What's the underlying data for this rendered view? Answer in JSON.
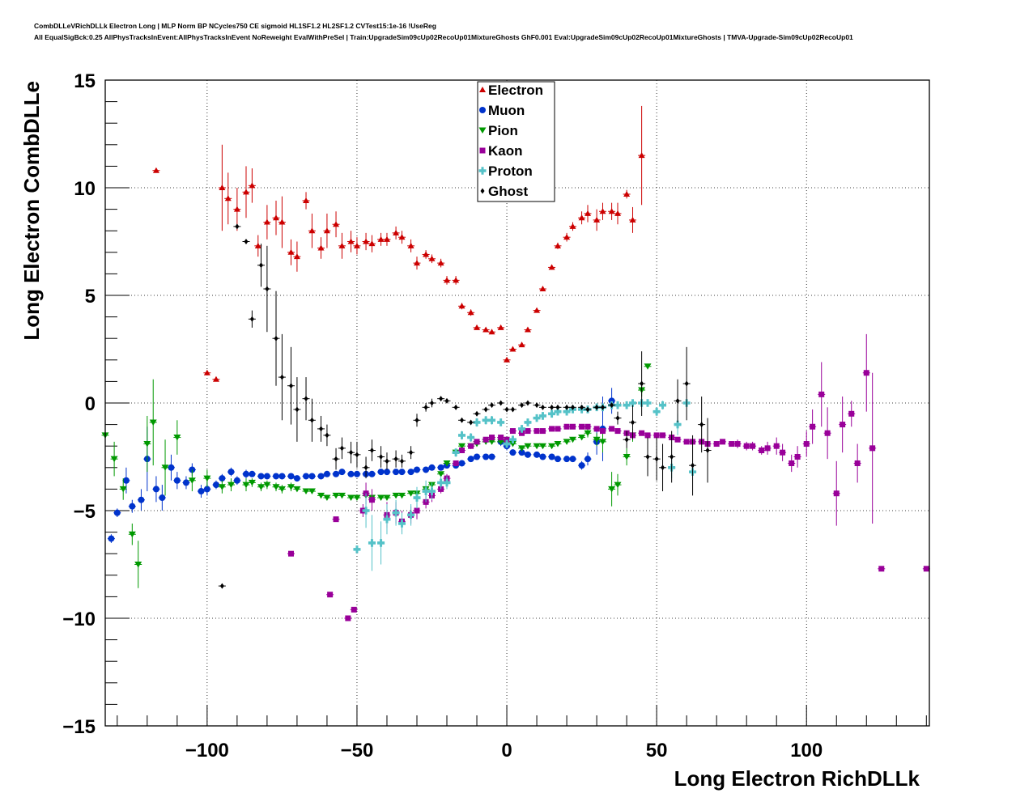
{
  "header": {
    "line1": "CombDLLeVRichDLLk Electron Long | MLP Norm BP NCycles750 CE sigmoid HL1SF1.2 HL2SF1.2 CVTest15:1e-16 !UseReg",
    "line2": "All EqualSigBck:0.25 AllPhysTracksInEvent:AllPhysTracksInEvent NoReweight EvalWithPreSel | Train:UpgradeSim09cUp02RecoUp01MixtureGhosts GhF0.001 Eval:UpgradeSim09cUp02RecoUp01MixtureGhosts | TMVA-Upgrade-Sim09cUp02RecoUp01"
  },
  "chart_data": {
    "type": "scatter",
    "xlabel": "Long Electron RichDLLk",
    "ylabel": "Long Electron CombDLLe",
    "xlim": [
      -134,
      141
    ],
    "ylim": [
      -15,
      15
    ],
    "xticks": [
      -100,
      -50,
      0,
      50,
      100
    ],
    "yticks": [
      -15,
      -10,
      -5,
      0,
      5,
      10,
      15
    ],
    "xtick_labels": [
      "−100",
      "−50",
      "0",
      "50",
      "100"
    ],
    "ytick_labels": [
      "−15",
      "−10",
      "−5",
      "0",
      "5",
      "10",
      "15"
    ],
    "grid": true,
    "legend_position": "top-center",
    "series": [
      {
        "name": "Electron",
        "color": "#cc0000",
        "marker": "triangle-up",
        "x": [
          -117,
          -100,
          -97,
          -95,
          -93,
          -90,
          -87,
          -85,
          -83,
          -80,
          -77,
          -75,
          -72,
          -70,
          -67,
          -65,
          -62,
          -60,
          -57,
          -55,
          -52,
          -50,
          -47,
          -45,
          -42,
          -40,
          -37,
          -35,
          -32,
          -30,
          -27,
          -25,
          -22,
          -20,
          -17,
          -15,
          -12,
          -10,
          -7,
          -5,
          -2,
          0,
          2,
          5,
          7,
          10,
          12,
          15,
          17,
          20,
          22,
          25,
          27,
          30,
          32,
          35,
          37,
          40,
          42,
          45
        ],
        "y": [
          10.8,
          1.4,
          1.1,
          10.0,
          9.5,
          9.0,
          9.8,
          10.1,
          7.3,
          8.4,
          8.6,
          8.4,
          7.0,
          6.8,
          9.4,
          8.0,
          7.2,
          8.0,
          8.3,
          7.3,
          7.5,
          7.3,
          7.5,
          7.4,
          7.6,
          7.6,
          7.9,
          7.7,
          7.3,
          6.5,
          6.9,
          6.7,
          6.5,
          5.7,
          5.7,
          4.5,
          4.2,
          3.5,
          3.4,
          3.3,
          3.5,
          2.0,
          2.5,
          2.7,
          3.4,
          4.3,
          5.3,
          6.3,
          7.3,
          7.7,
          8.2,
          8.6,
          8.8,
          8.5,
          8.9,
          8.9,
          8.8,
          9.7,
          8.5,
          11.5
        ],
        "err": [
          0,
          0,
          0,
          2.0,
          1.2,
          1.0,
          1.2,
          0.8,
          0.5,
          0.8,
          0.8,
          1.2,
          0.6,
          0.7,
          0.4,
          0.8,
          0.5,
          0.8,
          0.6,
          0.6,
          0.5,
          0.4,
          0.4,
          0.4,
          0.3,
          0.3,
          0.3,
          0.3,
          0.3,
          0.3,
          0.2,
          0.2,
          0.2,
          0.2,
          0.2,
          0.15,
          0.15,
          0.1,
          0.1,
          0.1,
          0.1,
          0.1,
          0.1,
          0.1,
          0.1,
          0.1,
          0.1,
          0.1,
          0.15,
          0.2,
          0.2,
          0.3,
          0.4,
          0.5,
          0.4,
          0.4,
          0.5,
          0.2,
          0.6,
          2.3
        ]
      },
      {
        "name": "Muon",
        "color": "#0033cc",
        "marker": "circle",
        "x": [
          -132,
          -130,
          -127,
          -125,
          -122,
          -120,
          -117,
          -115,
          -112,
          -110,
          -107,
          -105,
          -102,
          -100,
          -97,
          -95,
          -92,
          -90,
          -87,
          -85,
          -82,
          -80,
          -77,
          -75,
          -72,
          -70,
          -67,
          -65,
          -62,
          -60,
          -57,
          -55,
          -52,
          -50,
          -47,
          -45,
          -42,
          -40,
          -37,
          -35,
          -32,
          -30,
          -27,
          -25,
          -22,
          -20,
          -17,
          -15,
          -12,
          -10,
          -7,
          -5,
          -2,
          0,
          2,
          5,
          7,
          10,
          12,
          15,
          17,
          20,
          22,
          25,
          27,
          30,
          32,
          35
        ],
        "y": [
          -6.3,
          -5.1,
          -3.6,
          -4.8,
          -4.5,
          -2.6,
          -4.0,
          -4.4,
          -3.0,
          -3.6,
          -3.7,
          -3.1,
          -4.1,
          -4.0,
          -3.8,
          -3.5,
          -3.2,
          -3.6,
          -3.3,
          -3.3,
          -3.4,
          -3.4,
          -3.4,
          -3.4,
          -3.4,
          -3.5,
          -3.4,
          -3.4,
          -3.4,
          -3.3,
          -3.3,
          -3.2,
          -3.3,
          -3.3,
          -3.3,
          -3.3,
          -3.2,
          -3.2,
          -3.2,
          -3.2,
          -3.2,
          -3.1,
          -3.1,
          -3.0,
          -3.0,
          -2.9,
          -2.9,
          -2.8,
          -2.6,
          -2.5,
          -2.5,
          -2.5,
          -1.8,
          -2.0,
          -2.3,
          -2.3,
          -2.4,
          -2.4,
          -2.5,
          -2.5,
          -2.6,
          -2.6,
          -2.6,
          -2.9,
          -2.6,
          -1.8,
          -1.2,
          0.1
        ],
        "err": [
          0.2,
          0.2,
          0.6,
          0.3,
          0.5,
          1.5,
          0.6,
          0.6,
          0.6,
          0.4,
          0.3,
          0.3,
          0.3,
          0.3,
          0.2,
          0.2,
          0.2,
          0.2,
          0.2,
          0.1,
          0.1,
          0.1,
          0.1,
          0.1,
          0.1,
          0.1,
          0.1,
          0.1,
          0.1,
          0.1,
          0.1,
          0.1,
          0.1,
          0.1,
          0.1,
          0.1,
          0.1,
          0.1,
          0.1,
          0.1,
          0.1,
          0.1,
          0.1,
          0.1,
          0.1,
          0.1,
          0.1,
          0.1,
          0.1,
          0.1,
          0.1,
          0.1,
          0.2,
          0.2,
          0.1,
          0.1,
          0.1,
          0.1,
          0.1,
          0.1,
          0.1,
          0.1,
          0.1,
          0.2,
          0.3,
          0.6,
          1.5,
          0.6
        ]
      },
      {
        "name": "Pion",
        "color": "#009900",
        "marker": "triangle-down",
        "x": [
          -134,
          -131,
          -128,
          -125,
          -123,
          -120,
          -118,
          -114,
          -110,
          -105,
          -100,
          -95,
          -92,
          -87,
          -85,
          -82,
          -80,
          -77,
          -75,
          -72,
          -70,
          -67,
          -65,
          -62,
          -60,
          -57,
          -55,
          -52,
          -50,
          -47,
          -45,
          -42,
          -40,
          -37,
          -35,
          -32,
          -30,
          -27,
          -25,
          -22,
          -20,
          -17,
          -15,
          -12,
          -10,
          -7,
          -5,
          -2,
          0,
          2,
          5,
          7,
          10,
          12,
          15,
          17,
          20,
          22,
          25,
          27,
          30,
          32,
          35,
          37,
          40,
          42,
          45,
          47
        ],
        "y": [
          -1.5,
          -2.6,
          -4.0,
          -6.1,
          -7.5,
          -1.9,
          -0.9,
          -3.0,
          -1.6,
          -3.6,
          -3.5,
          -3.9,
          -3.8,
          -3.8,
          -3.7,
          -3.9,
          -3.8,
          -3.9,
          -4.0,
          -3.9,
          -4.0,
          -4.1,
          -4.1,
          -4.3,
          -4.4,
          -4.3,
          -4.3,
          -4.4,
          -4.4,
          -4.3,
          -4.4,
          -4.4,
          -4.4,
          -4.3,
          -4.3,
          -4.2,
          -4.2,
          -4.0,
          -3.8,
          -3.3,
          -2.8,
          -2.3,
          -2.0,
          -2.0,
          -1.9,
          -1.8,
          -1.8,
          -1.8,
          -1.9,
          -1.9,
          -2.1,
          -2.0,
          -2.0,
          -2.0,
          -2.0,
          -1.9,
          -1.8,
          -1.7,
          -1.6,
          -1.4,
          -1.7,
          -1.8,
          -4.0,
          -3.8,
          -2.5,
          -1.5,
          0.6,
          1.7
        ],
        "err": [
          0.3,
          0.8,
          0.5,
          0.5,
          1.1,
          1.3,
          2.0,
          1.3,
          0.8,
          0.5,
          0.4,
          0.3,
          0.3,
          0.3,
          0.2,
          0.2,
          0.2,
          0.2,
          0.2,
          0.2,
          0.1,
          0.1,
          0.1,
          0.1,
          0.1,
          0.1,
          0.1,
          0.1,
          0.1,
          0.1,
          0.1,
          0.1,
          0.1,
          0.1,
          0.1,
          0.1,
          0.1,
          0.1,
          0.1,
          0.1,
          0.1,
          0.1,
          0.1,
          0.1,
          0.1,
          0.1,
          0.1,
          0.1,
          0.1,
          0.1,
          0.1,
          0.1,
          0.1,
          0.1,
          0.1,
          0.1,
          0.1,
          0.1,
          0.1,
          0.2,
          0.3,
          0.5,
          0.8,
          0.5,
          0.4,
          0.3,
          0.3,
          0.1
        ]
      },
      {
        "name": "Kaon",
        "color": "#990099",
        "marker": "square",
        "x": [
          -72,
          -59,
          -57,
          -53,
          -51,
          -48,
          -47,
          -45,
          -40,
          -37,
          -35,
          -32,
          -30,
          -27,
          -25,
          -22,
          -20,
          -17,
          -15,
          -12,
          -10,
          -7,
          -5,
          -2,
          0,
          2,
          5,
          7,
          10,
          12,
          15,
          17,
          20,
          22,
          25,
          27,
          30,
          32,
          35,
          37,
          40,
          42,
          45,
          47,
          50,
          52,
          55,
          57,
          60,
          62,
          65,
          67,
          70,
          72,
          75,
          77,
          80,
          82,
          85,
          87,
          90,
          92,
          95,
          97,
          100,
          102,
          105,
          107,
          110,
          112,
          115,
          117,
          120,
          122,
          125,
          140
        ],
        "y": [
          -7.0,
          -8.9,
          -5.4,
          -10.0,
          -9.6,
          -5.0,
          -4.2,
          -4.5,
          -5.2,
          -5.1,
          -5.5,
          -5.2,
          -5.0,
          -4.6,
          -4.3,
          -4.0,
          -3.5,
          -2.8,
          -2.2,
          -2.0,
          -1.8,
          -1.7,
          -1.6,
          -1.6,
          -1.7,
          -1.3,
          -1.4,
          -1.3,
          -1.3,
          -1.3,
          -1.2,
          -1.2,
          -1.1,
          -1.1,
          -1.1,
          -1.1,
          -1.2,
          -1.3,
          -1.2,
          -1.3,
          -1.4,
          -1.5,
          -1.4,
          -1.5,
          -1.5,
          -1.5,
          -1.6,
          -1.7,
          -1.8,
          -1.8,
          -1.8,
          -1.9,
          -1.9,
          -1.8,
          -1.9,
          -1.9,
          -2.0,
          -2.0,
          -2.2,
          -2.1,
          -2.0,
          -2.3,
          -2.8,
          -2.5,
          -1.9,
          -1.1,
          0.4,
          -1.4,
          -4.2,
          -1.0,
          -0.5,
          -2.8,
          1.4,
          -2.1,
          -7.7,
          -7.7
        ],
        "err": [
          0,
          0,
          0,
          0,
          0,
          0.3,
          0.5,
          0.5,
          0.6,
          0.5,
          0.5,
          0.4,
          0.4,
          0.3,
          0.3,
          0.2,
          0.2,
          0.1,
          0.1,
          0.1,
          0.1,
          0.1,
          0.1,
          0.1,
          0.1,
          0.1,
          0.1,
          0.1,
          0.1,
          0.1,
          0.1,
          0.1,
          0.1,
          0.1,
          0.1,
          0.1,
          0.1,
          0.1,
          0.1,
          0.1,
          0.1,
          0.1,
          0.1,
          0.1,
          0.1,
          0.1,
          0.1,
          0.1,
          0.1,
          0.1,
          0.1,
          0.1,
          0.1,
          0.1,
          0.1,
          0.2,
          0.2,
          0.2,
          0.2,
          0.3,
          0.4,
          0.4,
          0.4,
          0.5,
          0.6,
          0.8,
          1.5,
          1.2,
          1.5,
          1.3,
          0.6,
          0.9,
          1.8,
          3.5,
          0,
          0
        ]
      },
      {
        "name": "Proton",
        "color": "#55c2c8",
        "marker": "cross",
        "x": [
          -50,
          -47,
          -45,
          -42,
          -40,
          -37,
          -35,
          -32,
          -30,
          -27,
          -25,
          -22,
          -20,
          -17,
          -15,
          -12,
          -10,
          -7,
          -5,
          -2,
          0,
          2,
          5,
          7,
          10,
          12,
          15,
          17,
          20,
          22,
          25,
          27,
          30,
          32,
          35,
          37,
          40,
          42,
          45,
          47,
          50,
          52,
          55,
          57,
          60,
          62
        ],
        "y": [
          -6.8,
          -5.0,
          -6.5,
          -6.5,
          -5.4,
          -5.1,
          -5.6,
          -5.2,
          -4.4,
          -4.1,
          -4.1,
          -3.7,
          -3.7,
          -2.3,
          -1.5,
          -1.6,
          -0.9,
          -0.8,
          -0.8,
          -0.9,
          -1.9,
          -1.7,
          -1.2,
          -0.9,
          -0.7,
          -0.6,
          -0.5,
          -0.4,
          -0.4,
          -0.3,
          -0.3,
          -0.3,
          -0.2,
          -0.2,
          -0.1,
          -0.1,
          -0.1,
          0.0,
          0.0,
          0.0,
          -0.4,
          -0.1,
          -3.0,
          -1.0,
          0.0,
          -3.2
        ],
        "err": [
          0,
          0.8,
          1.3,
          1.0,
          0.7,
          0.6,
          0.5,
          0.5,
          0.5,
          0.5,
          0.4,
          0.3,
          0.3,
          0.2,
          0.2,
          0.2,
          0.2,
          0.2,
          0.2,
          0.1,
          0.1,
          0.1,
          0.1,
          0.1,
          0.1,
          0.1,
          0.1,
          0.1,
          0.1,
          0.1,
          0.1,
          0.1,
          0.1,
          0.1,
          0.1,
          0.1,
          0.1,
          0.1,
          0.1,
          0.1,
          0.2,
          0.2,
          0.5,
          0.5,
          0.1,
          0.1
        ]
      },
      {
        "name": "Ghost",
        "color": "#000000",
        "marker": "diamond",
        "x": [
          -95,
          -90,
          -87,
          -85,
          -82,
          -80,
          -77,
          -75,
          -72,
          -70,
          -67,
          -65,
          -62,
          -60,
          -57,
          -55,
          -52,
          -50,
          -47,
          -45,
          -42,
          -40,
          -37,
          -35,
          -32,
          -30,
          -27,
          -25,
          -22,
          -20,
          -17,
          -15,
          -12,
          -10,
          -7,
          -5,
          -2,
          0,
          2,
          5,
          7,
          10,
          12,
          15,
          17,
          20,
          22,
          25,
          27,
          30,
          32,
          35,
          37,
          40,
          42,
          45,
          47,
          50,
          52,
          55,
          57,
          60,
          62,
          65,
          67
        ],
        "y": [
          -8.5,
          8.2,
          7.5,
          3.9,
          6.4,
          5.3,
          3.0,
          1.2,
          0.8,
          -0.3,
          0.2,
          -0.8,
          -1.2,
          -1.5,
          -2.6,
          -2.1,
          -2.3,
          -2.4,
          -3.0,
          -2.2,
          -2.5,
          -2.7,
          -2.6,
          -2.7,
          -2.3,
          -0.8,
          -0.2,
          0.0,
          0.2,
          0.1,
          -0.2,
          -0.8,
          -0.9,
          -0.5,
          -0.3,
          -0.1,
          0.0,
          -0.3,
          -0.3,
          -0.1,
          0.0,
          -0.1,
          -0.2,
          -0.2,
          -0.2,
          -0.2,
          -0.2,
          -0.2,
          -0.3,
          -0.2,
          -0.2,
          -0.1,
          -0.7,
          -1.7,
          -0.9,
          0.9,
          -2.5,
          -2.6,
          -3.0,
          -2.5,
          0.1,
          0.9,
          -2.9,
          -1.0,
          -2.2
        ],
        "err": [
          0,
          0,
          0,
          0.4,
          1.0,
          2.0,
          2.2,
          2.0,
          1.8,
          1.5,
          1.0,
          1.0,
          0.6,
          0.5,
          0.5,
          0.5,
          0.5,
          0.6,
          0.5,
          0.5,
          0.5,
          0.4,
          0.4,
          0.3,
          0.3,
          0.3,
          0.2,
          0.2,
          0.1,
          0.1,
          0.1,
          0.1,
          0.1,
          0.1,
          0.1,
          0.1,
          0.1,
          0.1,
          0.1,
          0.1,
          0.1,
          0.1,
          0.1,
          0.1,
          0.1,
          0.1,
          0.1,
          0.1,
          0.1,
          0.1,
          0.1,
          0.1,
          0.3,
          0.4,
          0.8,
          1.5,
          0.9,
          1.0,
          1.1,
          1.2,
          1.0,
          1.7,
          1.4,
          1.3,
          1.5
        ]
      }
    ]
  }
}
